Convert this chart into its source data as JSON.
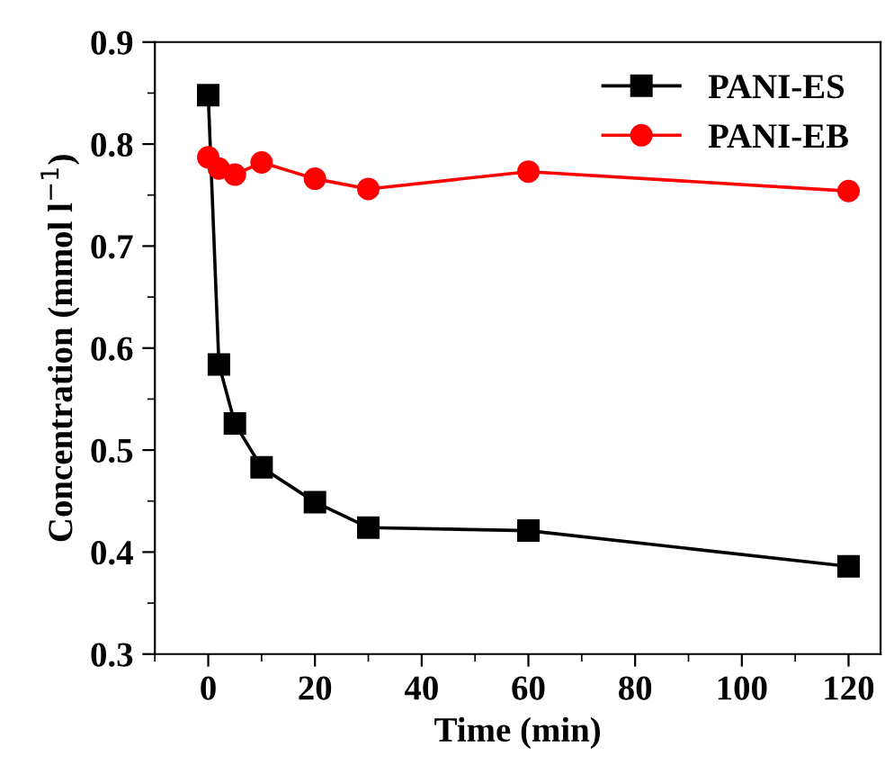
{
  "chart_data": {
    "type": "line",
    "xlabel": "Time (min)",
    "ylabel": "Concentration (mmol l$^{−1}$)",
    "xlim": [
      -10,
      126
    ],
    "xticks": [
      0,
      20,
      40,
      60,
      80,
      100,
      120
    ],
    "ylim": [
      0.3,
      0.9
    ],
    "yticks": [
      0.3,
      0.4,
      0.5,
      0.6,
      0.7,
      0.8,
      0.9
    ],
    "grid": false,
    "legend": "top right",
    "line_style": "solid",
    "series": [
      {
        "name": "PANI-ES",
        "color": "#000000",
        "marker": "square",
        "x": [
          0,
          2,
          5,
          10,
          20,
          30,
          60,
          120
        ],
        "values": [
          0.848,
          0.584,
          0.526,
          0.483,
          0.449,
          0.424,
          0.421,
          0.386
        ]
      },
      {
        "name": "PANI-EB",
        "color": "#ff0000",
        "marker": "circle",
        "x": [
          0,
          2,
          5,
          10,
          20,
          30,
          60,
          120
        ],
        "values": [
          0.787,
          0.776,
          0.77,
          0.782,
          0.766,
          0.756,
          0.773,
          0.754
        ]
      }
    ]
  }
}
